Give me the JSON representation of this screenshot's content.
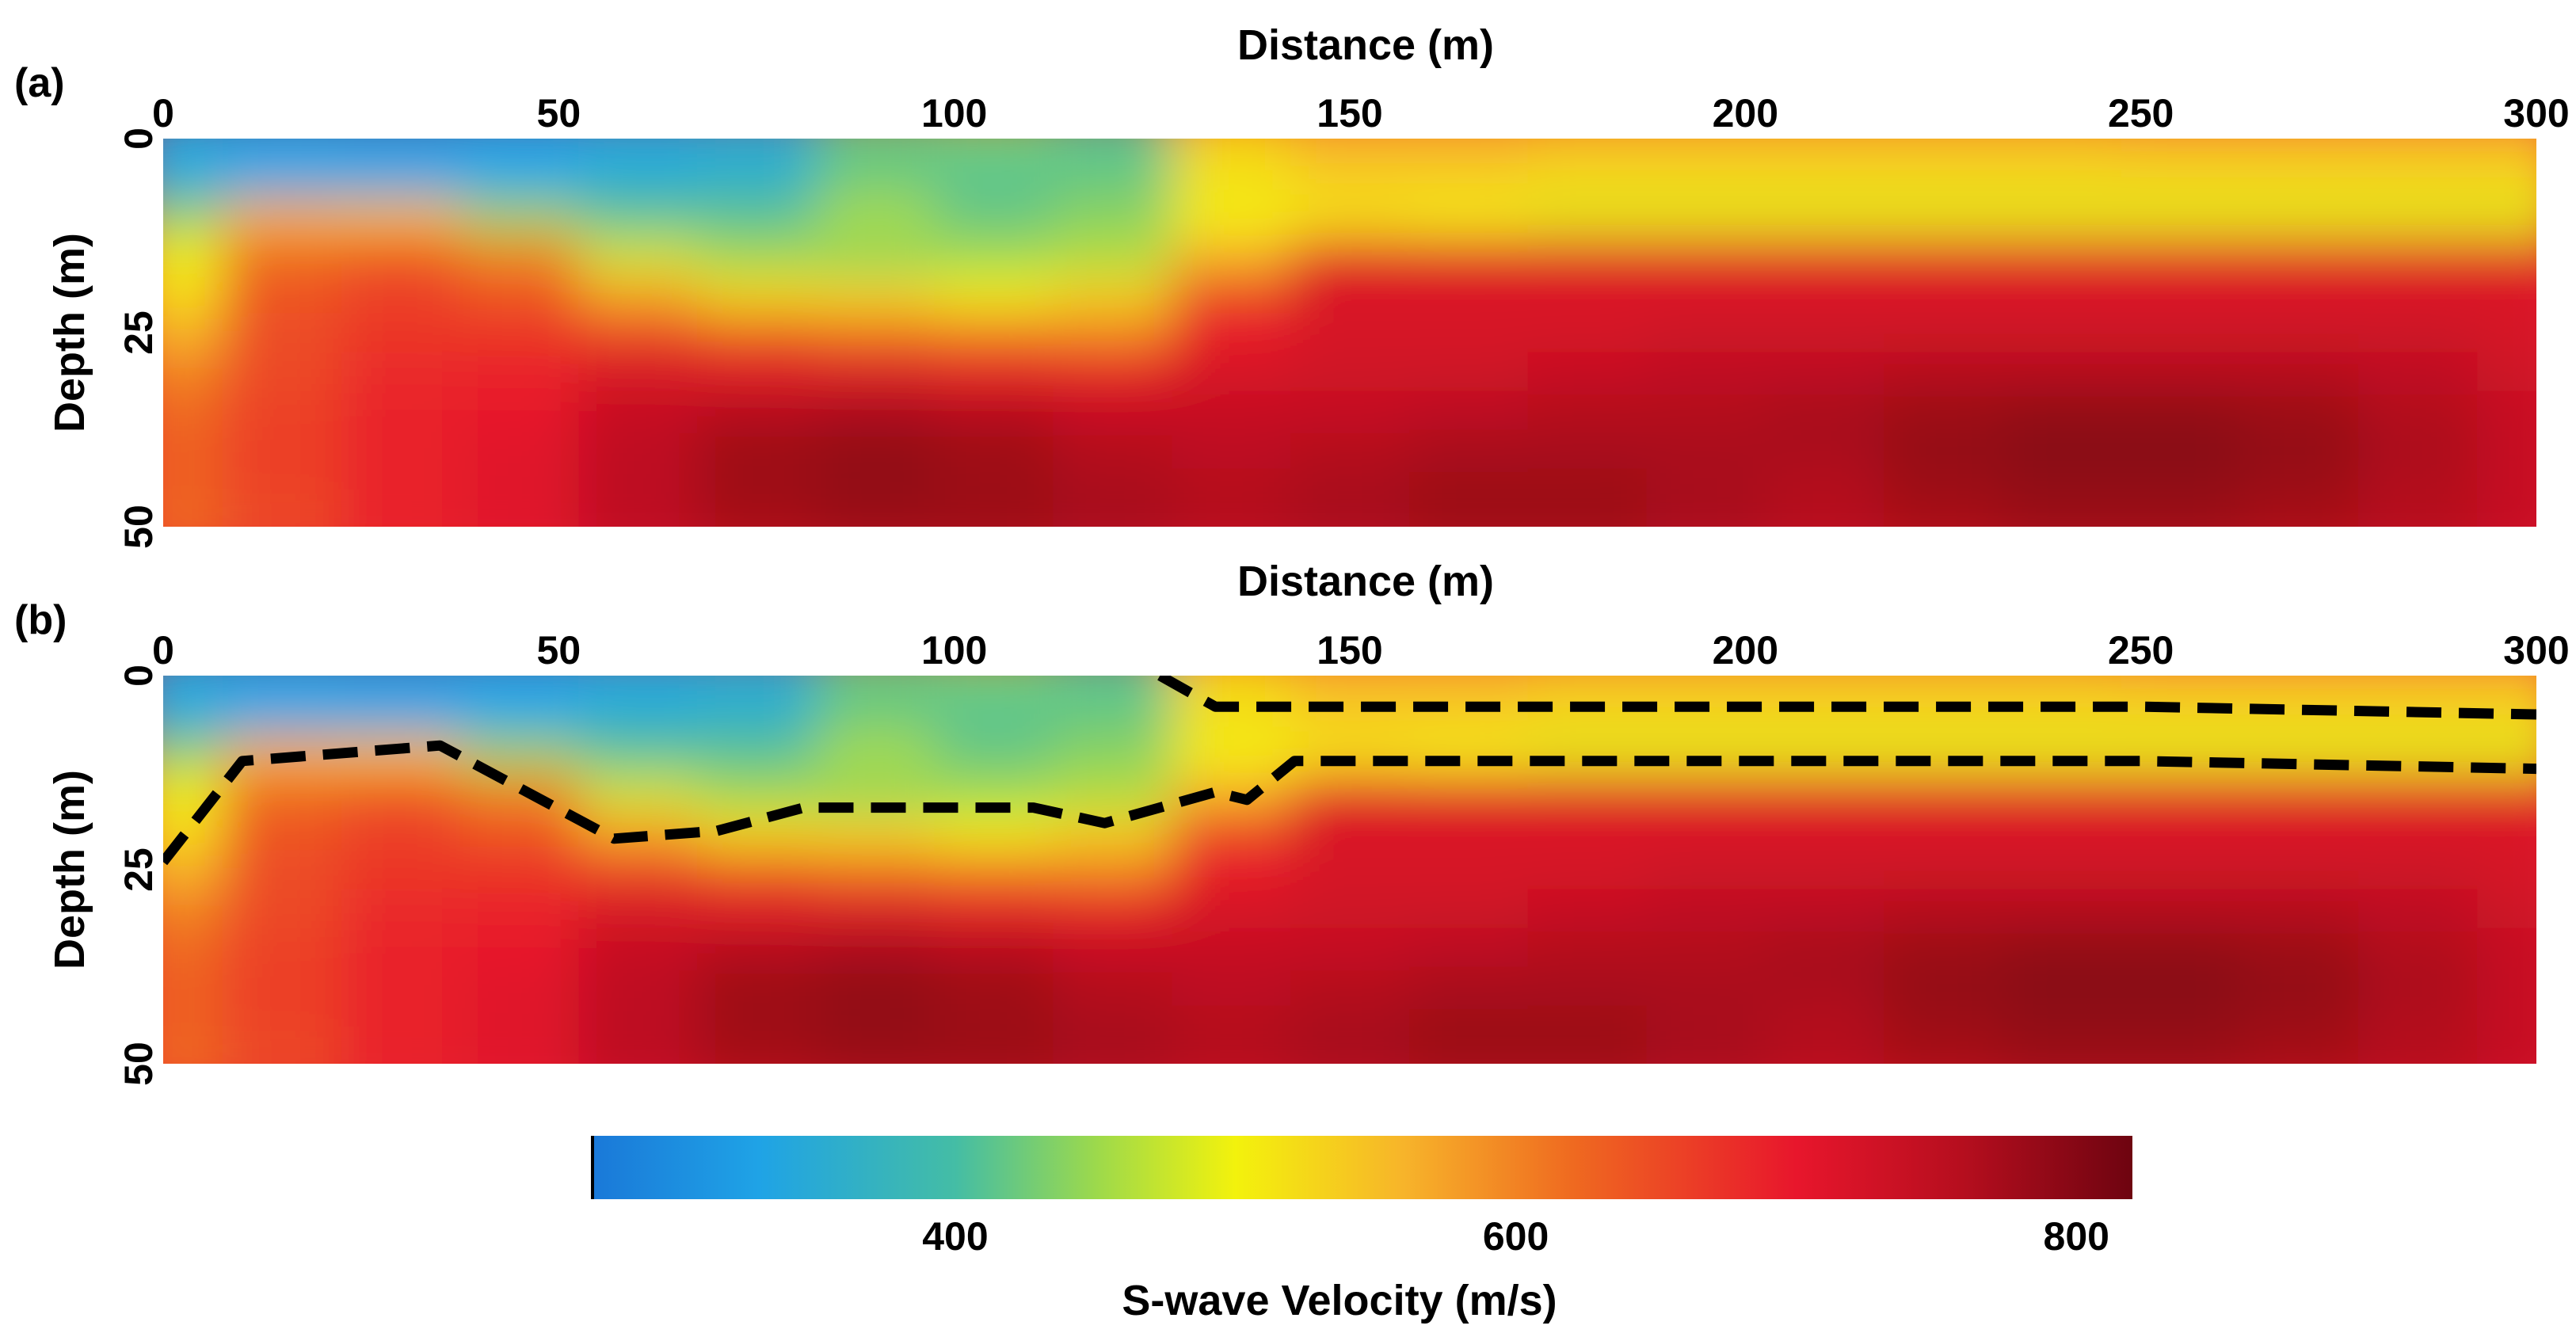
{
  "chart_data": [
    {
      "type": "heatmap",
      "panel_label": "(a)",
      "xlabel": "Distance (m)",
      "ylabel": "Depth (m)",
      "xticks": [
        "0",
        "50",
        "100",
        "150",
        "200",
        "250",
        "300"
      ],
      "yticks": [
        "0",
        "25",
        "50"
      ],
      "xlim": [
        0,
        300
      ],
      "ylim": [
        0,
        50
      ],
      "y_inverted": true,
      "velocity_grid": {
        "description_units": "m/s",
        "x": [
          0,
          15,
          30,
          45,
          60,
          75,
          90,
          105,
          120,
          135,
          150,
          165,
          180,
          195,
          210,
          225,
          240,
          255,
          270,
          285,
          300
        ],
        "depth": [
          0,
          5,
          10,
          15,
          20,
          25,
          30,
          35,
          40,
          45,
          50
        ],
        "values": [
          [
            340,
            330,
            320,
            330,
            340,
            350,
            420,
            430,
            410,
            530,
            560,
            560,
            550,
            550,
            550,
            550,
            550,
            560,
            560,
            560,
            560
          ],
          [
            340,
            330,
            330,
            330,
            350,
            360,
            420,
            410,
            420,
            520,
            540,
            540,
            530,
            530,
            530,
            530,
            530,
            530,
            530,
            530,
            530
          ],
          [
            440,
            560,
            550,
            450,
            410,
            410,
            460,
            420,
            440,
            500,
            510,
            500,
            490,
            490,
            490,
            490,
            490,
            490,
            490,
            490,
            490
          ],
          [
            500,
            620,
            640,
            600,
            480,
            450,
            440,
            450,
            460,
            560,
            700,
            700,
            700,
            700,
            700,
            700,
            700,
            700,
            700,
            700,
            700
          ],
          [
            520,
            640,
            660,
            640,
            570,
            520,
            520,
            500,
            530,
            660,
            720,
            720,
            720,
            720,
            720,
            720,
            720,
            720,
            720,
            720,
            720
          ],
          [
            560,
            650,
            670,
            670,
            660,
            640,
            620,
            610,
            600,
            700,
            720,
            720,
            720,
            730,
            730,
            730,
            730,
            730,
            730,
            730,
            720
          ],
          [
            600,
            650,
            680,
            690,
            720,
            710,
            710,
            700,
            700,
            720,
            730,
            730,
            740,
            750,
            750,
            760,
            760,
            760,
            760,
            750,
            730
          ],
          [
            620,
            660,
            690,
            700,
            740,
            760,
            770,
            760,
            740,
            740,
            740,
            750,
            760,
            760,
            770,
            780,
            790,
            790,
            780,
            760,
            740
          ],
          [
            630,
            660,
            690,
            710,
            750,
            780,
            790,
            780,
            760,
            750,
            760,
            770,
            770,
            770,
            770,
            790,
            800,
            800,
            790,
            770,
            740
          ],
          [
            630,
            660,
            690,
            710,
            750,
            780,
            790,
            780,
            770,
            760,
            770,
            780,
            780,
            770,
            760,
            780,
            790,
            790,
            780,
            760,
            740
          ],
          [
            620,
            650,
            690,
            710,
            750,
            770,
            780,
            780,
            770,
            760,
            770,
            780,
            780,
            770,
            760,
            770,
            780,
            780,
            770,
            760,
            740
          ]
        ]
      }
    },
    {
      "type": "heatmap",
      "panel_label": "(b)",
      "xlabel": "Distance (m)",
      "ylabel": "Depth (m)",
      "xticks": [
        "0",
        "50",
        "100",
        "150",
        "200",
        "250",
        "300"
      ],
      "yticks": [
        "0",
        "25",
        "50"
      ],
      "xlim": [
        0,
        300
      ],
      "ylim": [
        0,
        50
      ],
      "y_inverted": true,
      "same_velocity_model_as": "(a)",
      "interpreted_boundaries": [
        {
          "name": "lower layer boundary",
          "style": "dashed black",
          "points": [
            [
              0,
              24
            ],
            [
              10,
              11
            ],
            [
              35,
              9
            ],
            [
              57,
              21
            ],
            [
              70,
              20
            ],
            [
              81,
              17
            ],
            [
              110,
              17
            ],
            [
              119,
              19
            ],
            [
              133,
              15
            ],
            [
              137,
              16
            ],
            [
              143,
              11
            ],
            [
              200,
              11
            ],
            [
              250,
              11
            ],
            [
              300,
              12
            ]
          ]
        },
        {
          "name": "upper layer boundary",
          "style": "dashed black",
          "points": [
            [
              126,
              0
            ],
            [
              133,
              4
            ],
            [
              150,
              4
            ],
            [
              200,
              4
            ],
            [
              250,
              4
            ],
            [
              300,
              5
            ]
          ]
        }
      ]
    },
    {
      "type": "colorbar",
      "title": "S-wave Velocity (m/s)",
      "range": [
        270,
        820
      ],
      "ticks": [
        "400",
        "600",
        "800"
      ],
      "tick_values": [
        400,
        600,
        800
      ],
      "colormap": [
        [
          270,
          "#1a78d8"
        ],
        [
          330,
          "#1fa3e6"
        ],
        [
          400,
          "#44bda5"
        ],
        [
          450,
          "#9cd94c"
        ],
        [
          500,
          "#f3f20c"
        ],
        [
          560,
          "#f7b42a"
        ],
        [
          620,
          "#ef6a20"
        ],
        [
          700,
          "#e8162c"
        ],
        [
          760,
          "#b50e1e"
        ],
        [
          820,
          "#6e0410"
        ]
      ]
    }
  ]
}
